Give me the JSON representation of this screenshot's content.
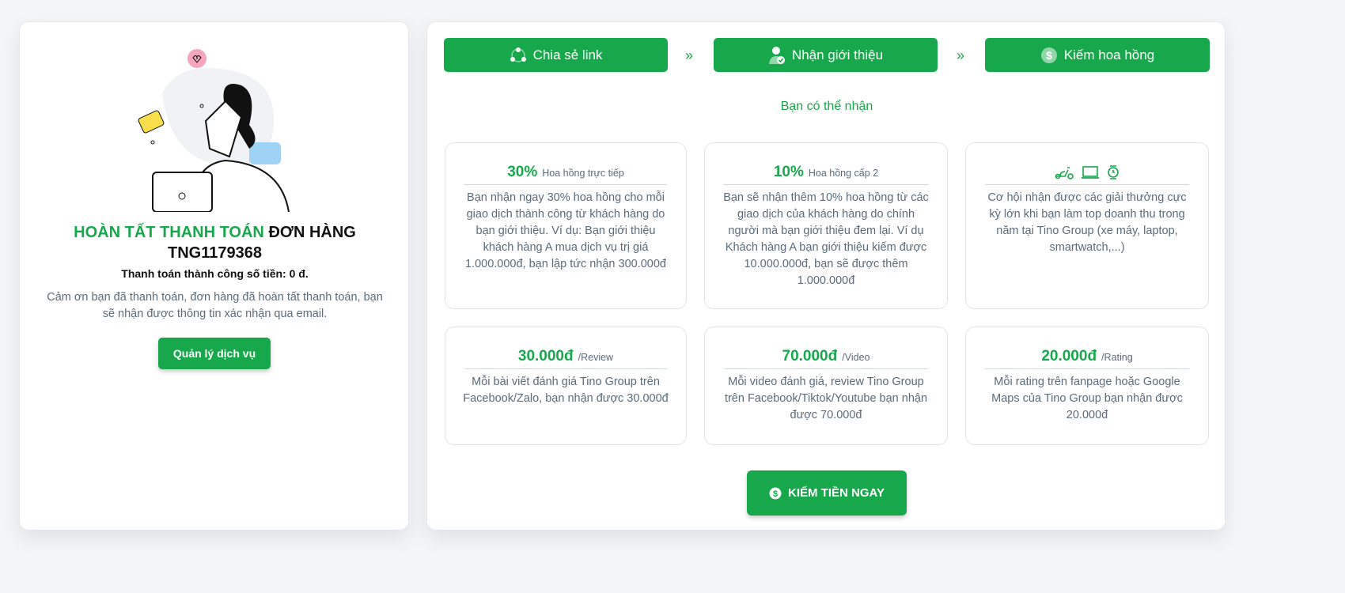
{
  "order": {
    "title_green": "HOÀN TẤT THANH TOÁN",
    "title_black": "ĐƠN HÀNG",
    "order_id": "TNG1179368",
    "paid": "Thanh toán thành công số tiền: 0 đ.",
    "thanks": "Cảm ơn bạn đã thanh toán, đơn hàng đã hoàn tất thanh toán, bạn sẽ nhận được thông tin xác nhận qua email.",
    "manage_button": "Quản lý dịch vụ"
  },
  "steps": [
    {
      "label": "Chia sẻ link",
      "icon": "share-icon"
    },
    {
      "label": "Nhận giới thiệu",
      "icon": "user-check-icon"
    },
    {
      "label": "Kiếm hoa hồng",
      "icon": "dollar-icon"
    }
  ],
  "subtitle": "Bạn có thể nhận",
  "benefits": [
    {
      "value": "30%",
      "unit": "Hoa hồng trực tiếp",
      "text": "Bạn nhận ngay 30% hoa hồng cho mỗi giao dịch thành công từ khách hàng do bạn giới thiệu. Ví dụ: Bạn giới thiệu khách hàng A mua dịch vụ trị giá 1.000.000đ, bạn lập tức nhận 300.000đ"
    },
    {
      "value": "10%",
      "unit": "Hoa hồng cấp 2",
      "text": "Bạn sẽ nhận thêm 10% hoa hồng từ các giao dịch của khách hàng do chính người mà bạn giới thiệu đem lại. Ví dụ Khách hàng A bạn giới thiệu kiếm được 10.000.000đ, bạn sẽ được thêm 1.000.000đ"
    },
    {
      "icons": [
        "scooter-icon",
        "laptop-icon",
        "watch-icon"
      ],
      "text": "Cơ hội nhận được các giải thưởng cực kỳ lớn khi bạn làm top doanh thu trong năm tại Tino Group (xe máy, laptop, smartwatch,...)"
    },
    {
      "value": "30.000đ",
      "unit": "/Review",
      "text": "Mỗi bài viết đánh giá Tino Group trên Facebook/Zalo, bạn nhận được 30.000đ"
    },
    {
      "value": "70.000đ",
      "unit": "/Video",
      "text": "Mỗi video đánh giá, review Tino Group trên Facebook/Tiktok/Youtube bạn nhận được 70.000đ"
    },
    {
      "value": "20.000đ",
      "unit": "/Rating",
      "text": "Mỗi rating trên fanpage hoặc Google Maps của Tino Group bạn nhận được 20.000đ"
    }
  ],
  "cta": "KIẾM TIỀN NGAY",
  "colors": {
    "accent": "#17a84b",
    "text": "#5b6b7b"
  }
}
